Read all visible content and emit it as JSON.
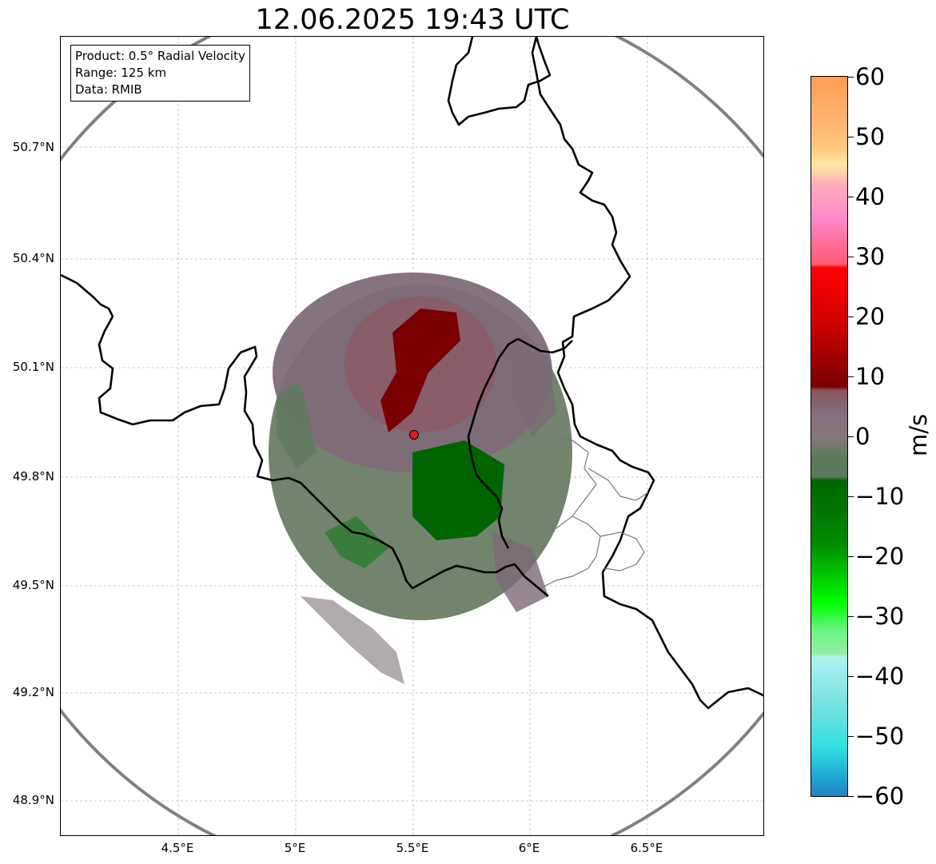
{
  "title": "12.06.2025 19:43 UTC",
  "info": {
    "product": "Product: 0.5° Radial Velocity",
    "range": "Range: 125 km",
    "data_source": "Data: RMIB"
  },
  "axes": {
    "lat_labels": [
      "50.7°N",
      "50.4°N",
      "50.1°N",
      "49.8°N",
      "49.5°N",
      "49.2°N",
      "48.9°N"
    ],
    "lon_labels": [
      "4.5°E",
      "5°E",
      "5.5°E",
      "6°E",
      "6.5°E"
    ]
  },
  "colorbar": {
    "unit": "m/s",
    "ticks": [
      "60",
      "50",
      "40",
      "30",
      "20",
      "10",
      "0",
      "−10",
      "−20",
      "−30",
      "−40",
      "−50",
      "−60"
    ],
    "range": [
      -60,
      60
    ],
    "colors": {
      "max": "#ff9c52",
      "orange_light": "#ffc880",
      "pale_yellow": "#ffe6a0",
      "pink_light": "#ffaabb",
      "pink": "#ff86c8",
      "rose": "#ff5d72",
      "red": "#ff0000",
      "dark_red": "#780000",
      "mauve": "#8a5560",
      "gray_mauve": "#857878",
      "gray_green": "#5a7a5a",
      "dark_green": "#006400",
      "green": "#00b400",
      "bright_green": "#00ff00",
      "light_green": "#90f0a0",
      "pale_cyan": "#b0f0f0",
      "cyan": "#30e0e0",
      "min": "#2080c0"
    }
  },
  "map": {
    "radar_site": "RMIB",
    "border_color": "#000000",
    "range_ring_color": "#808080",
    "echo_colors": {
      "approaching_core": "#006400",
      "approaching": "#5f7a5c",
      "near_zero": "#7b6a75",
      "receding": "#8b5b68",
      "receding_core": "#7a0000"
    }
  }
}
